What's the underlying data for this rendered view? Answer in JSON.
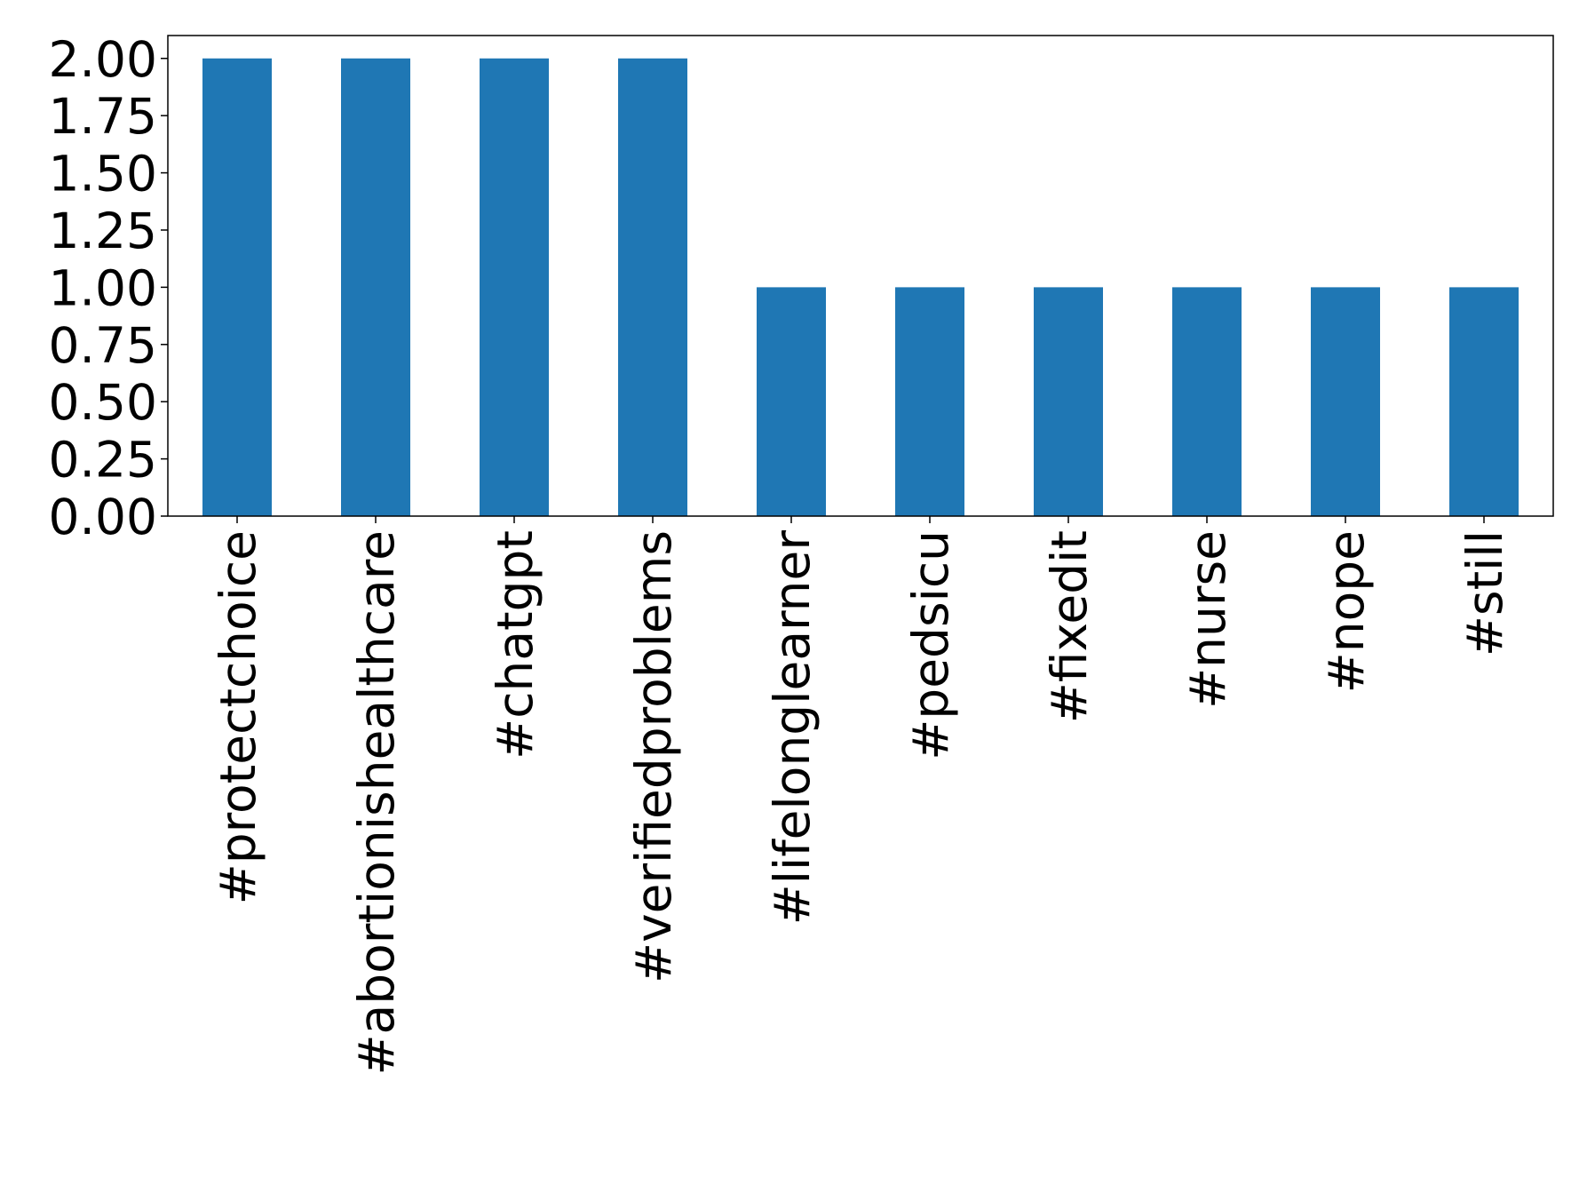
{
  "chart_data": {
    "type": "bar",
    "categories": [
      "#protectchoice",
      "#abortionishealthcare",
      "#chatgpt",
      "#verifiedproblems",
      "#lifelonglearner",
      "#pedsicu",
      "#fixedit",
      "#nurse",
      "#nope",
      "#still"
    ],
    "values": [
      2,
      2,
      2,
      2,
      1,
      1,
      1,
      1,
      1,
      1
    ],
    "color": "#1f77b4",
    "ylim": [
      0,
      2.1
    ],
    "yticks": [
      {
        "value": 0,
        "label": "0.00"
      },
      {
        "value": 0.25,
        "label": "0.25"
      },
      {
        "value": 0.5,
        "label": "0.50"
      },
      {
        "value": 0.75,
        "label": "0.75"
      },
      {
        "value": 1,
        "label": "1.00"
      },
      {
        "value": 1.25,
        "label": "1.25"
      },
      {
        "value": 1.5,
        "label": "1.50"
      },
      {
        "value": 1.75,
        "label": "1.75"
      },
      {
        "value": 2,
        "label": "2.00"
      }
    ],
    "grid": false
  }
}
